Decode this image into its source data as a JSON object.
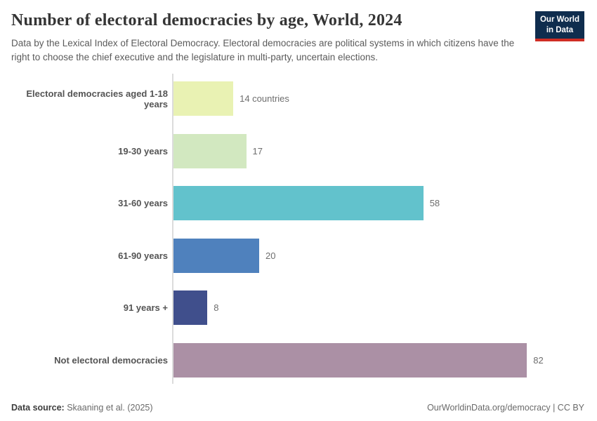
{
  "header": {
    "title": "Number of electoral democracies by age, World, 2024",
    "subtitle": "Data by the Lexical Index of Electoral Democracy. Electoral democracies are political systems in which citizens have the right to choose the chief executive and the legislature in multi-party, uncertain elections.",
    "logo": {
      "line1": "Our World",
      "line2": "in Data",
      "bg_color": "#0f2d4e",
      "accent_color": "#cf2d24"
    }
  },
  "chart_data": {
    "type": "bar",
    "orientation": "horizontal",
    "title": "Number of electoral democracies by age, World, 2024",
    "categories": [
      "Electoral democracies aged 1-18 years",
      "19-30 years",
      "31-60 years",
      "61-90 years",
      "91 years +",
      "Not electoral democracies"
    ],
    "values": [
      14,
      17,
      58,
      20,
      8,
      82
    ],
    "value_labels": [
      "14 countries",
      "17",
      "58",
      "20",
      "8",
      "82"
    ],
    "bar_colors": [
      "#e9f2b3",
      "#d2e8c0",
      "#62c2cc",
      "#4f81bd",
      "#404f8c",
      "#ab90a5"
    ],
    "unit_suffix_first": "countries",
    "xlabel": "",
    "ylabel": "",
    "grid": false,
    "legend": "none",
    "axis_line_color": "#dcdcdc"
  },
  "footer": {
    "source_label": "Data source:",
    "source_value": " Skaaning et al. (2025)",
    "link": "OurWorldinData.org/democracy",
    "separator": " | ",
    "license": "CC BY"
  }
}
